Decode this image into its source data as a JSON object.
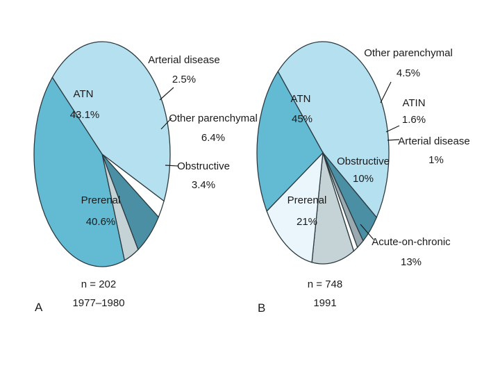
{
  "chart_data": [
    {
      "type": "pie",
      "panel": "A",
      "caption": [
        "n = 202",
        "1977–1980"
      ],
      "slices": [
        {
          "label": "ATN",
          "value_text": "43.1%",
          "value": 43.1,
          "color": "#b5e0f0"
        },
        {
          "label": "Arterial disease",
          "value_text": "2.5%",
          "value": 2.5,
          "color": "#ffffff"
        },
        {
          "label": "Other parenchymal",
          "value_text": "6.4%",
          "value": 6.4,
          "color": "#4a8fa3"
        },
        {
          "label": "Obstructive",
          "value_text": "3.4%",
          "value": 3.4,
          "color": "#c5d3d6"
        },
        {
          "label": "Prerenal",
          "value_text": "40.6%",
          "value": 40.6,
          "color": "#63bad3"
        }
      ]
    },
    {
      "type": "pie",
      "panel": "B",
      "caption": [
        "n = 748",
        "1991"
      ],
      "slices": [
        {
          "label": "ATN",
          "value_text": "45%",
          "value": 45,
          "color": "#b5e0f0"
        },
        {
          "label": "Other parenchymal",
          "value_text": "4.5%",
          "value": 4.5,
          "color": "#4a8fa3"
        },
        {
          "label": "ATIN",
          "value_text": "1.6%",
          "value": 1.6,
          "color": "#9aaab0"
        },
        {
          "label": "Arterial disease",
          "value_text": "1%",
          "value": 1,
          "color": "#ffffff"
        },
        {
          "label": "Obstructive",
          "value_text": "10%",
          "value": 10,
          "color": "#c5d3d6"
        },
        {
          "label": "Acute-on-chronic",
          "value_text": "13%",
          "value": 13,
          "color": "#eaf6fb"
        },
        {
          "label": "Prerenal",
          "value_text": "21%",
          "value": 21,
          "color": "#63bad3"
        }
      ]
    }
  ]
}
